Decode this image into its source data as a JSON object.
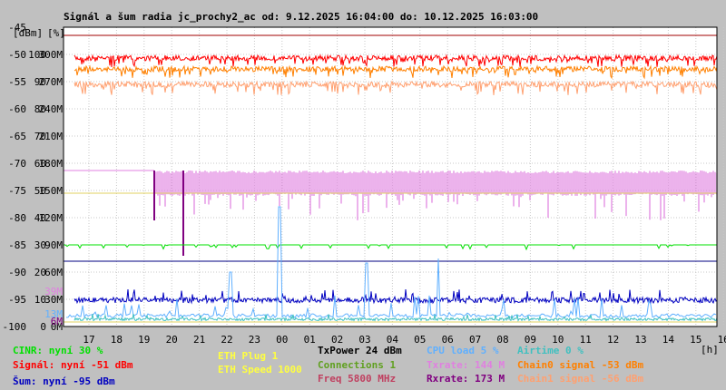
{
  "title": "Signál a šum radia jc_prochy2_ac od: 9.12.2025 16:04:00 do: 10.12.2025 16:03:00",
  "chart_data": {
    "type": "line",
    "ylabel_left": "[dBm]",
    "ylabel_mid": "[%]",
    "xlabel": "[h]",
    "y_ticks_dbm": [
      "-45",
      "-50",
      "-55",
      "-60",
      "-65",
      "-70",
      "-75",
      "-80",
      "-85",
      "-90",
      "-95",
      "-100"
    ],
    "y_ticks_pct": [
      "100",
      "90",
      "80",
      "70",
      "60",
      "50",
      "40",
      "30",
      "20",
      "10",
      "0"
    ],
    "y_ticks_rate": [
      "300M",
      "270M",
      "240M",
      "210M",
      "180M",
      "150M",
      "120M",
      "90M",
      "60M",
      "30M",
      "0M"
    ],
    "extra_ticks": [
      "39M",
      "13M",
      "6M"
    ],
    "x_ticks": [
      "17",
      "18",
      "19",
      "20",
      "21",
      "22",
      "23",
      "00",
      "01",
      "02",
      "03",
      "04",
      "05",
      "06",
      "07",
      "08",
      "09",
      "10",
      "11",
      "12",
      "13",
      "14",
      "15",
      "16"
    ],
    "ylim_dbm": [
      -100,
      -45
    ],
    "series": [
      {
        "name": "Signál",
        "color": "#ff0000",
        "typical": -51
      },
      {
        "name": "Chain0 signal",
        "color": "#ff8000",
        "typical": -53
      },
      {
        "name": "Chain1 signal",
        "color": "#ffa070",
        "typical": -56
      },
      {
        "name": "Txrate",
        "color": "#e080e0",
        "typical": 144
      },
      {
        "name": "CINR",
        "color": "#00e000",
        "typical": 30
      },
      {
        "name": "Šum",
        "color": "#0000c0",
        "typical": -95
      },
      {
        "name": "CPU load",
        "color": "#60b0ff",
        "typical": 5
      },
      {
        "name": "Airtime",
        "color": "#40c0c0",
        "typical": 0
      },
      {
        "name": "Rxrate",
        "color": "#800080",
        "typical": 173
      }
    ]
  },
  "legend": {
    "cinr": "CINR: nyní 30 %",
    "signal": "Signál: nyní -51 dBm",
    "sum": "Šum: nyní -95 dBm",
    "eth_plug": "ETH Plug 1",
    "eth_speed": "ETH Speed 1000",
    "txpower": "TxPower 24 dBm",
    "connections": "Connections 1",
    "freq": "Freq 5800 MHz",
    "cpu": "CPU load 5 %",
    "txrate": "Txrate: 144 M",
    "rxrate": "Rxrate: 173 M",
    "airtime": "Airtime 0 %",
    "chain0": "Chain0 signal -53 dBm",
    "chain1": "Chain1 signal -56 dBm"
  },
  "colors": {
    "cinr": "#00e000",
    "signal": "#ff0000",
    "sum": "#0000c0",
    "eth": "#ffff40",
    "txpower": "#000000",
    "connections": "#60a020",
    "freq": "#c04060",
    "cpu": "#60b0ff",
    "txrate": "#e080e0",
    "rxrate": "#800080",
    "airtime": "#40c0c0",
    "chain0": "#ff8000",
    "chain1": "#ffa070"
  }
}
